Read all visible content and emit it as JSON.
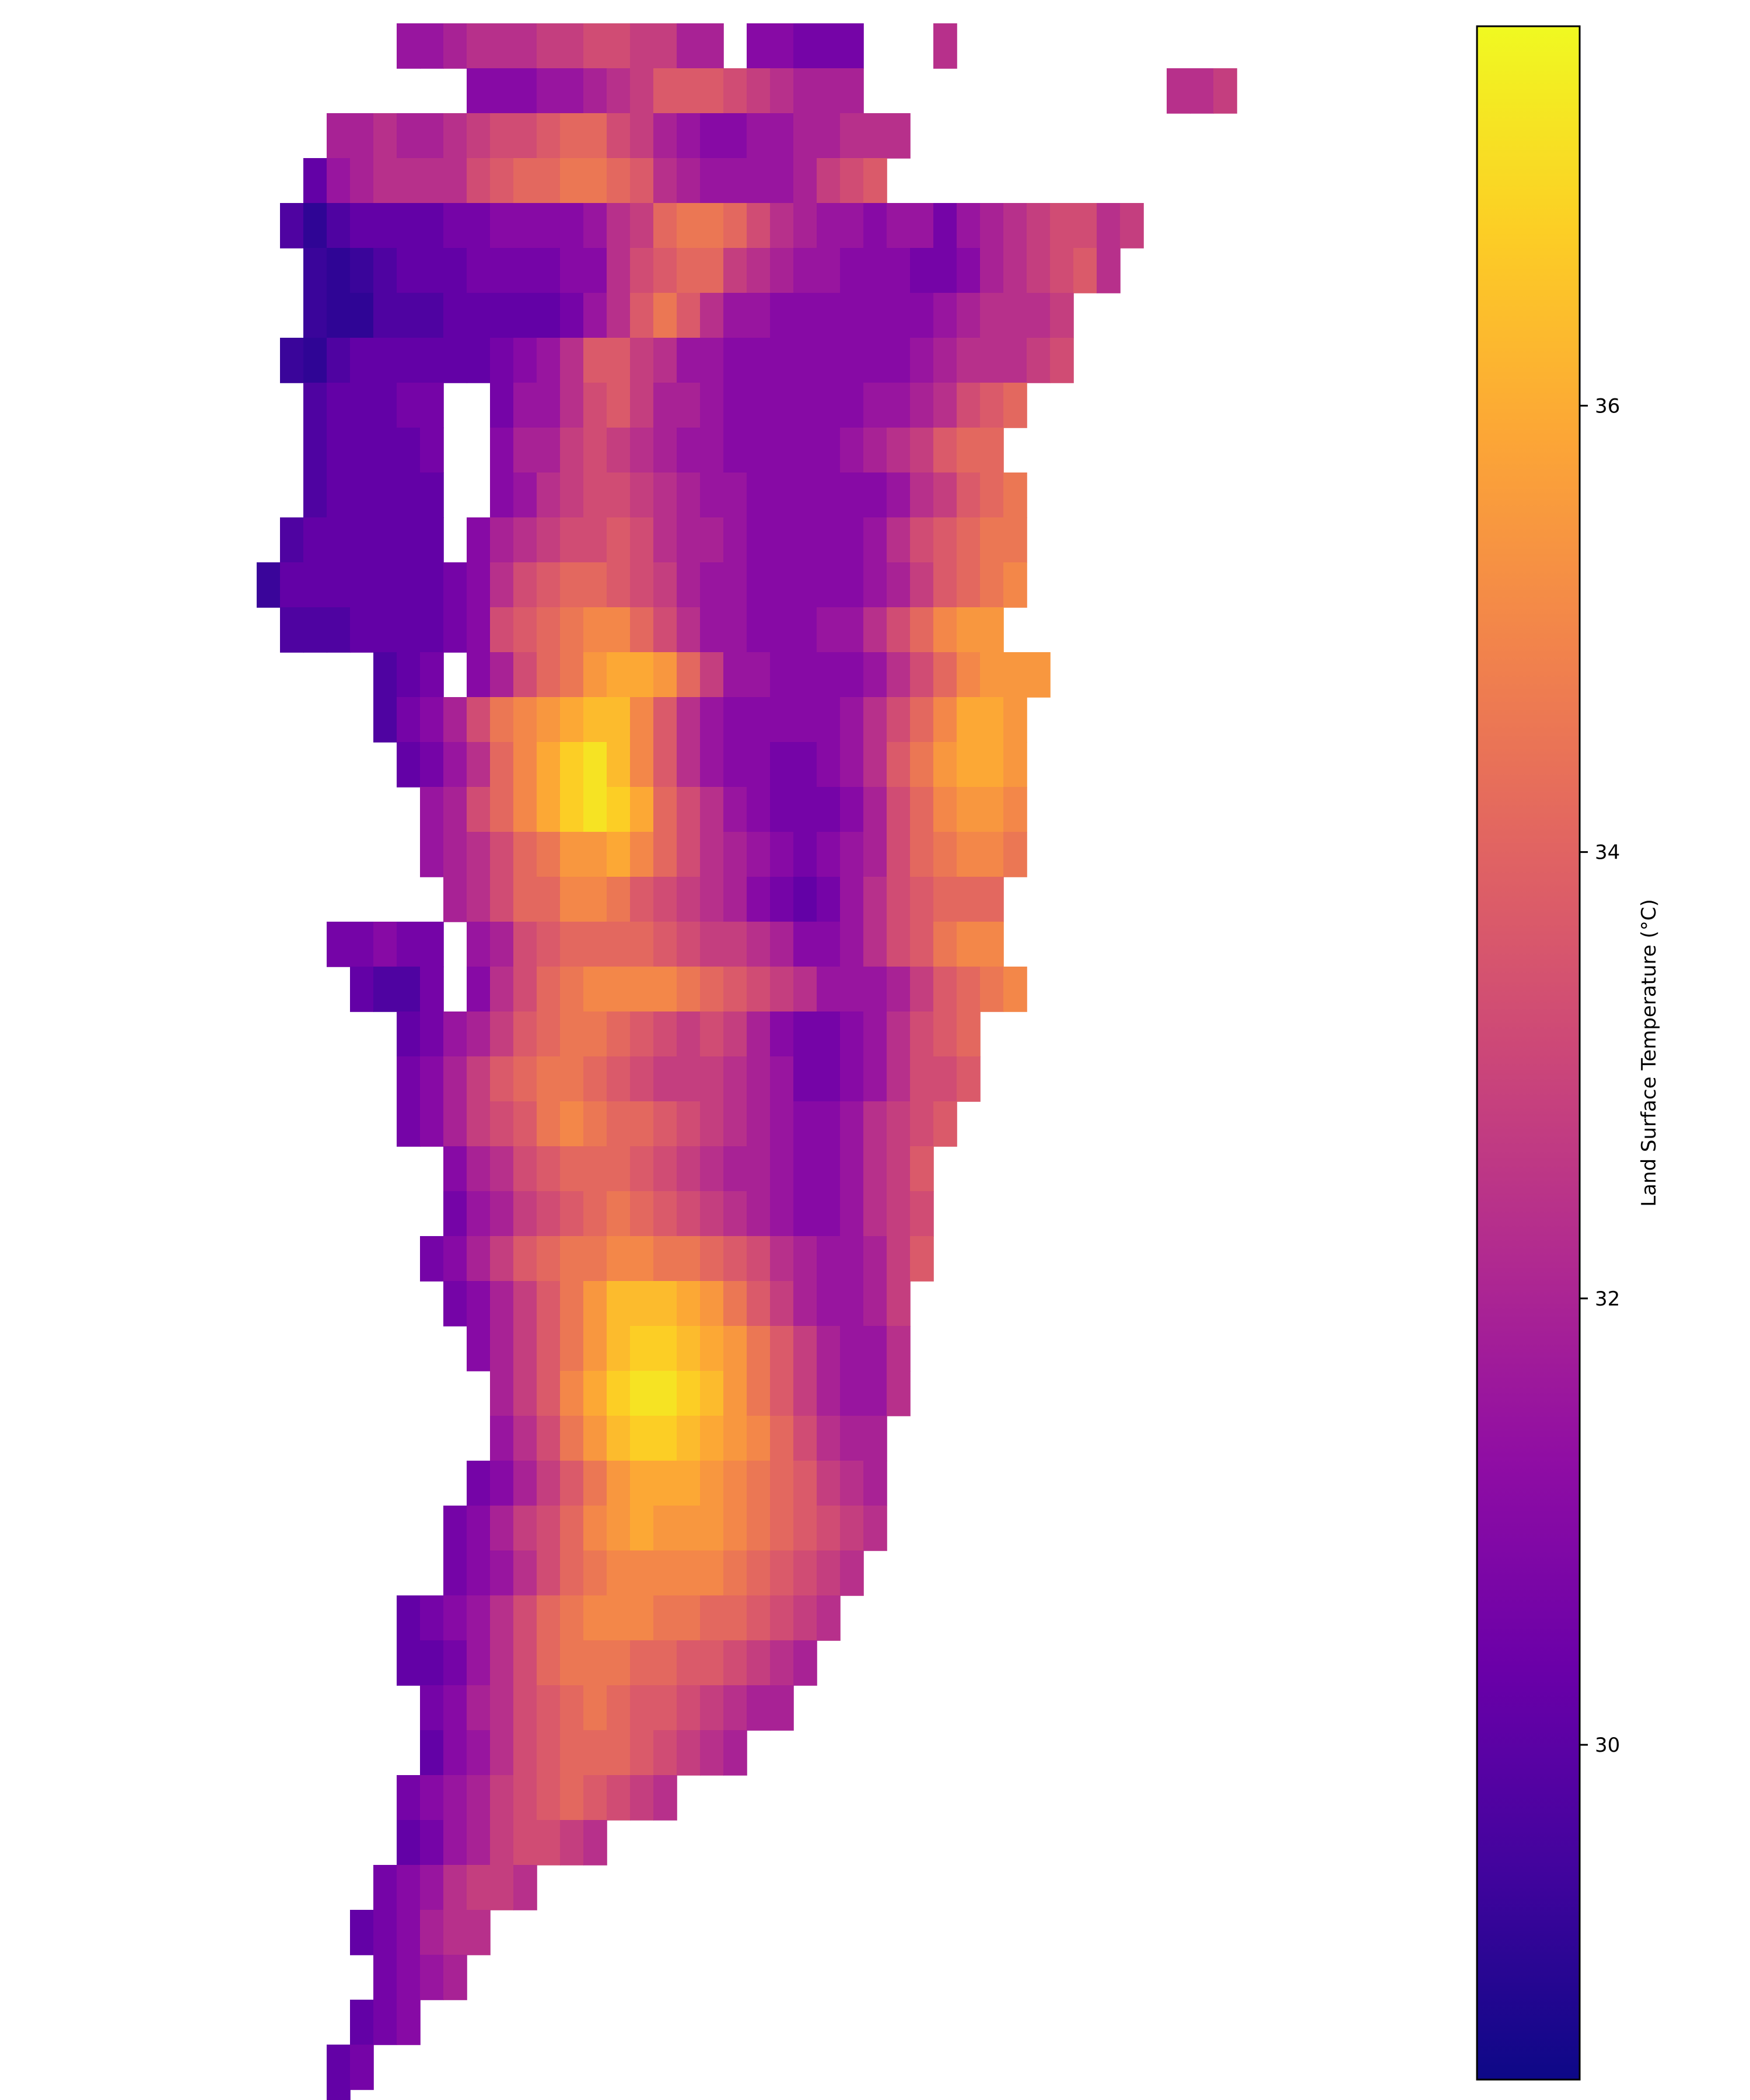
{
  "chart_data": {
    "type": "heatmap",
    "title": "",
    "xlabel": "",
    "ylabel": "",
    "axes_visible": false,
    "grid": false,
    "colormap": "plasma",
    "colorbar": {
      "label": "Land Surface Temperature (°C)",
      "placement": "right",
      "range": [
        28.5,
        37.7
      ],
      "ticks": [
        30,
        32,
        34,
        36
      ],
      "tick_labels": [
        "30",
        "32",
        "34",
        "36"
      ]
    },
    "grid_shape": [
      47,
      25
    ],
    "units": "°C",
    "values_note": "approximate values read from colour, row 0 = top, null = no data",
    "rows": [
      "8-----FFGHHHIIJJIIGG-EEDDD---H",
      "---------EEEFFGHIKKKJIHGGG-------------HHI",
      "---GGHGGHIJJKLLJIGFEEFFGGHHH",
      "--CFGHHHHJKLLMMLKHGFFFFGIJK",
      "-B+BCCCCDDEEEEFHILMMLJHGFFEFFDFGHIJJHI",
      "--A+ABCCCDDDDEEHJKLLIHGFFEEEDDEGHIJKH",
      "--A++BBBCCCCCDFHKMKHFFEEEEEEEFGHHHI",
      "-A+BCCCCCCDEFHKKIHFFEEEEEEEEFGHHHIJ",
      "--BCCCDD--DFFHJKIGGFEEEEEEFFGHJKL",
      "--BCCCCD--EGGIJIHGFFEEEEEFGHIKLL",
      "--BCCCCC--EFHIJJIHGFFEEEEEEFHIKLM",
      "-BCCCCCC-EGHIJJKJHGGFEEEEEFHJKLMM",
      "ACCCCCCCDEHJKLLKJIGFFEEEEEFGIKLMN",
      "-BBBCCCCDEJKLMNNLJHFFEEEFFHJLNOO",
      "-----BCD-EGJLMOPPOLIFFEEEEFHJLNOOO",
      "-----BDEGJMNOPQQNKHFEEEEEFHJLNPPO",
      "------CDFHLNPRSQNKHFEEDDEFHKMOPPO",
      "-------FGJLNPRSRPLJHFEDDDEGJLNOON",
      "-------FGHJLMOOPNLJHGFEDEFGJLMNNM",
      "--------GHJLLNNMKJIHGEDCDFHJKLLL",
      "---DDEDD-FGJKLLLLKJIIHGEEFHJKMNN",
      "----CBBD-EHJLMNNNNMLKJIHFFFGIKLMN",
      "------CDFGIKLMMLKJIJIGEDDEFHJKL",
      "------DEGIKLMMLKJIIIHGFDDEFHJJK",
      "------DEGIJKMNMLLKJIHGFEEFHIJK",
      "--------EGHJKLLLKJIHGGFEEFHIK",
      "--------DFGIJKLMLKJIHGFEEFHIJ",
      "-------DEGIKLMMNNMMLKJHGFFGIK",
      "--------DEGIKMOQQQPOMKIGFFGI",
      "---------EGIKMOQRRQPOMKIGFFH",
      "----------GIKNPRSSRQOMKIGFFH",
      "----------FHJMOQRRQPONLJHGG",
      "---------DEGIKMOPPPONMLKIHG",
      "--------DEGIJLNOPOOONMLKJIH",
      "--------DEFHJLMNNNNNMLKJIH",
      "------CDEFHJLMNNNMMLLKJIH",
      "------CCDFHJLMMMLLKKJIHG",
      "-------DEGHJKLMLKKJIHGG",
      "-------CEFHJKLLLKJIHG",
      "------DEFGIJKLKJIH",
      "------CDFGIJJIH",
      "-----DEFHIIH",
      "----CDEGHH",
      "-----DEFG",
      "----CDE",
      "---CD",
      "---C"
    ],
    "right_cluster_rows": [
      "----------------------JJ",
      "------IIH-GG-HHI",
      "------HGFFEEEEFF-J",
      "------GFEEDDDDEEFHI",
      "------FEDDCCDDEEGHIJ",
      "------FFEEDDDDEFHJK-K",
      "------GFFEEEDEFGIJKL",
      "------HHGFEEEFGIJKLM",
      "------IJIHGFFGHJKLMN",
      "------JKKJIHHIJKLMNN",
      "------KLMLKJJKLMNOO",
      "------LMNMLKKLMNOP",
      "------LMNONMMNOP",
      "------KLMNNMMN",
      "------JKLLKJJ",
      "------IJKJII",
      "------HIJI",
      "------GHI",
      "------FG",
      "------E",
      "------D",
      "------C",
      "------B",
      "------A",
      "------A",
      "------B",
      "------C",
      "------B",
      "------A"
    ]
  }
}
